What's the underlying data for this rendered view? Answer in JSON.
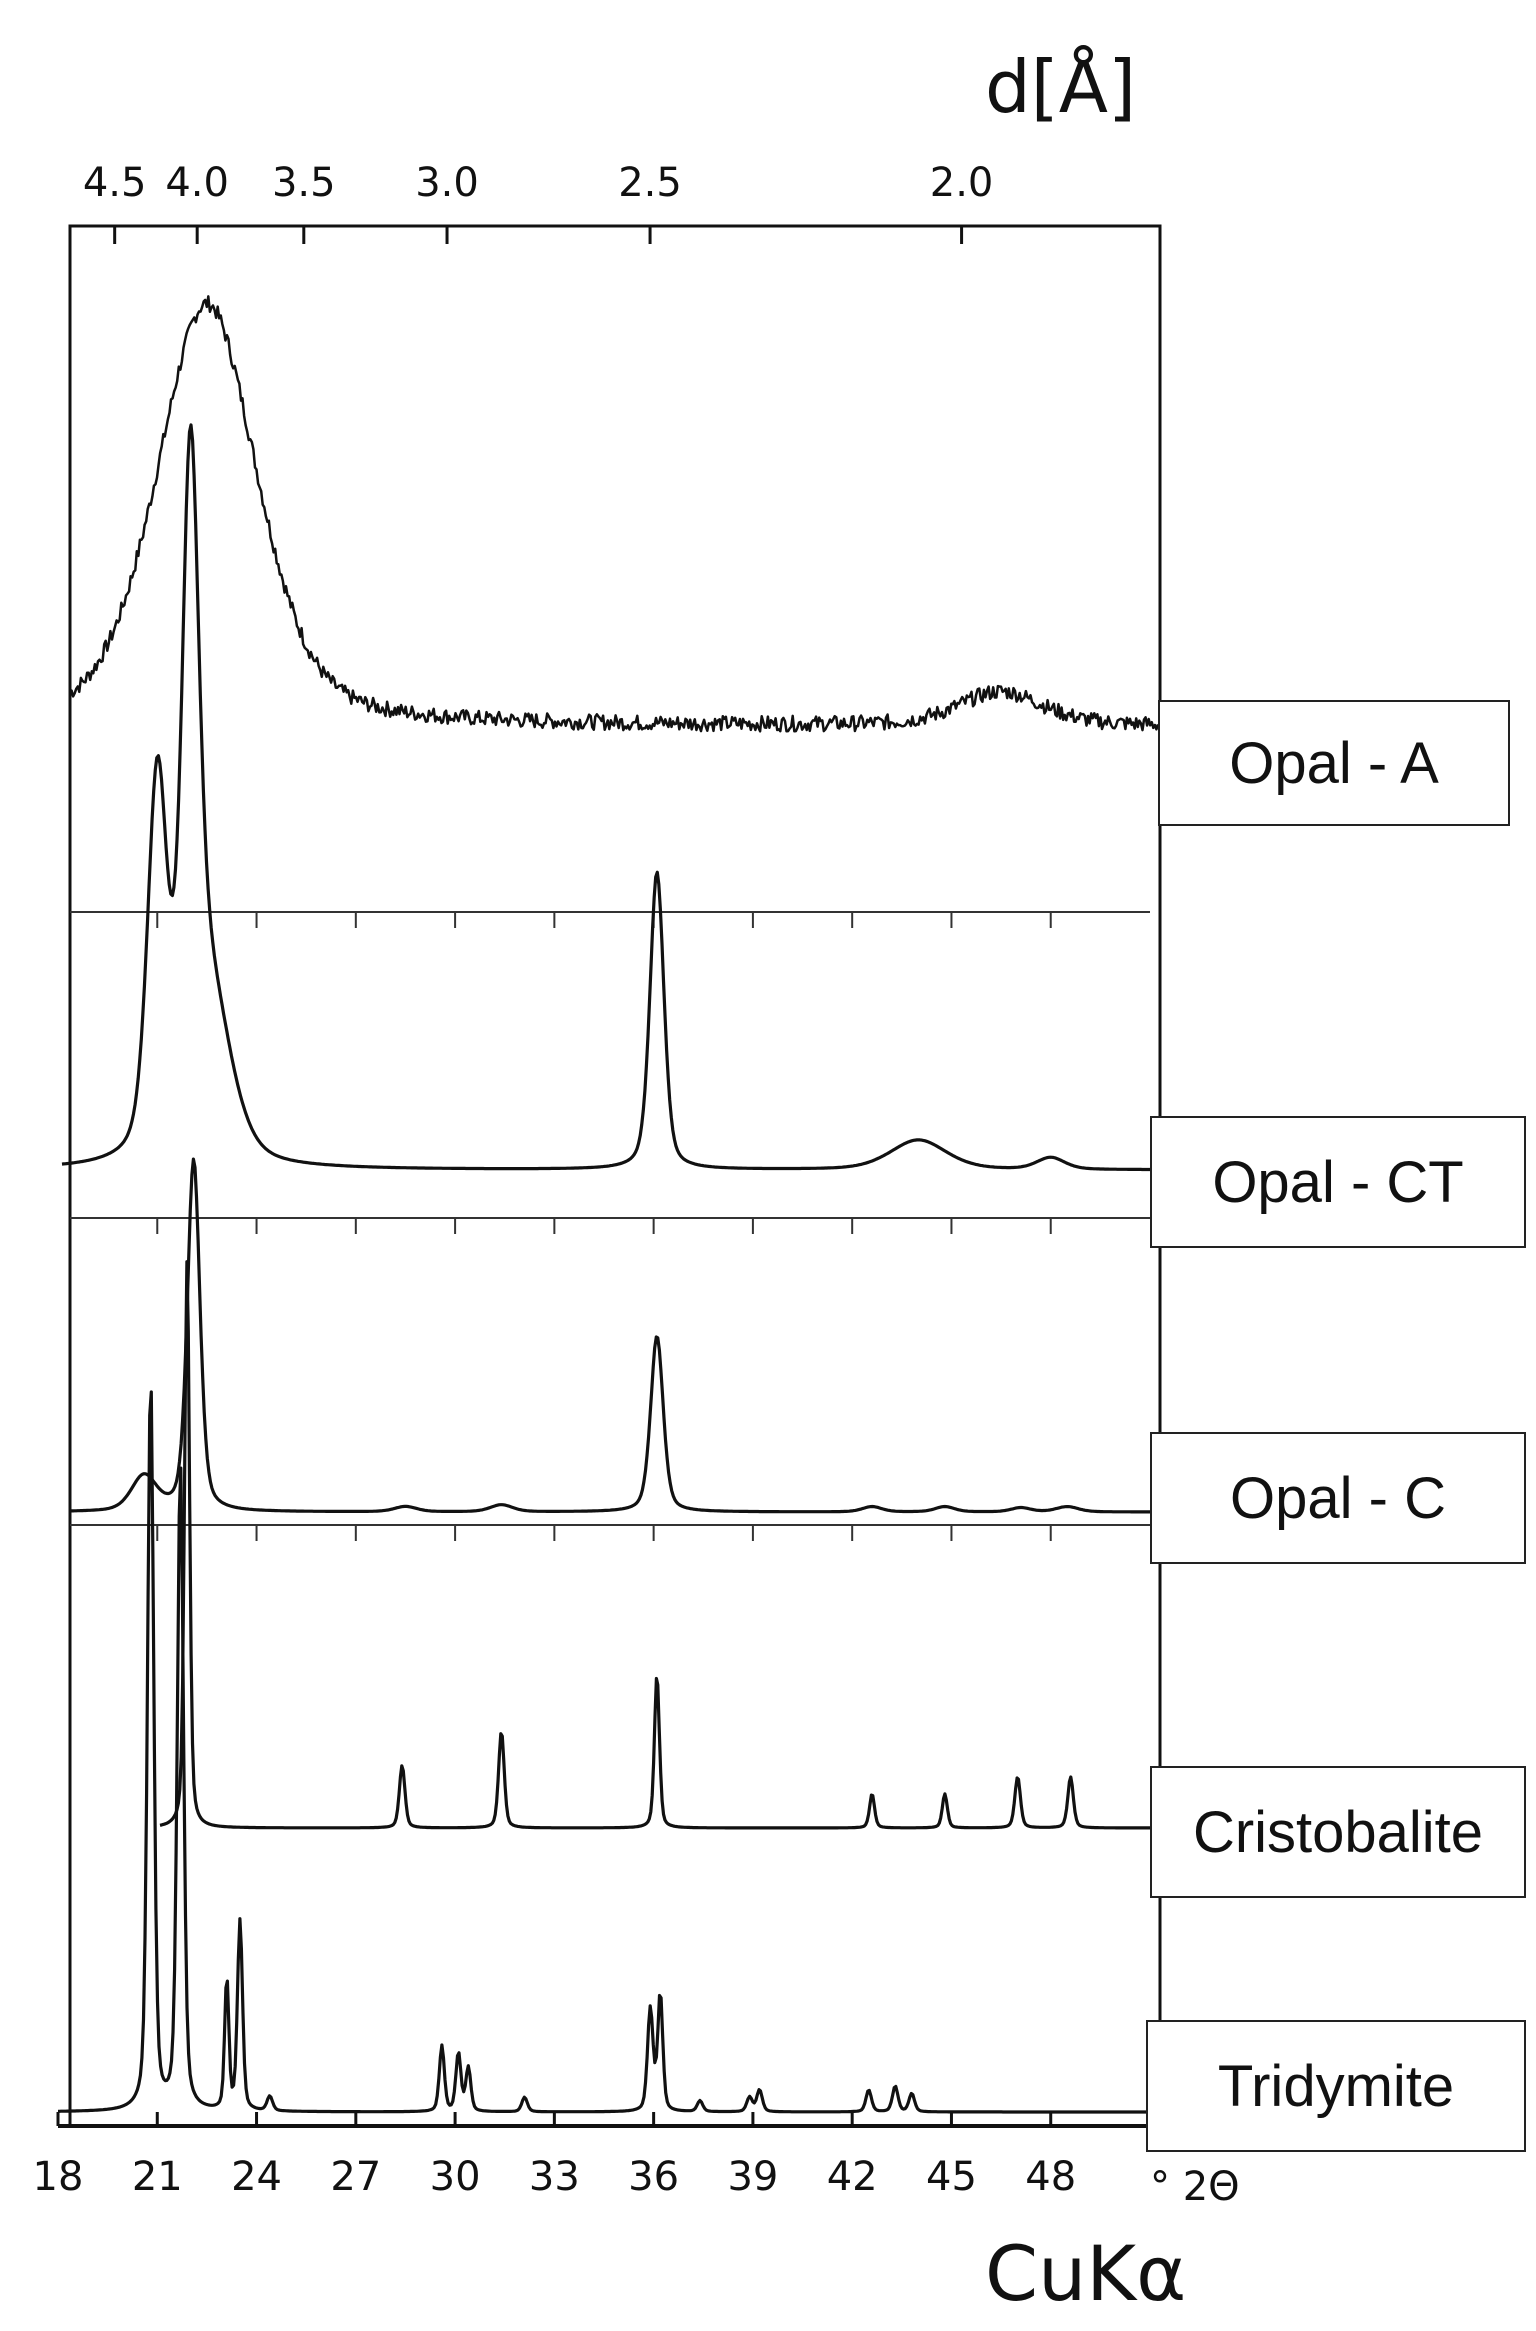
{
  "chart_data": {
    "type": "line",
    "x_unit_label": "° 2Θ",
    "xlabel": "CuKα",
    "x2label": "d[Å]",
    "xlim": [
      18,
      51
    ],
    "x_ticks": [
      "18",
      "21",
      "24",
      "27",
      "30",
      "33",
      "36",
      "39",
      "42",
      "45",
      "48"
    ],
    "d_ticks": [
      "4.5",
      "4.0",
      "3.5",
      "3.0",
      "2.5",
      "2.0"
    ],
    "series": [
      {
        "name": "Opal - A",
        "peaks": [
          {
            "x": 22.5,
            "height": 1.0,
            "width": 3.6
          },
          {
            "x": 46.5,
            "height": 0.08,
            "width": 3.0
          }
        ],
        "noisy": true
      },
      {
        "name": "Opal - CT",
        "peaks": [
          {
            "x": 21.0,
            "height": 0.62,
            "width": 0.7
          },
          {
            "x": 22.0,
            "height": 1.0,
            "width": 0.6
          },
          {
            "x": 22.5,
            "height": 0.3,
            "width": 1.6
          },
          {
            "x": 36.1,
            "height": 0.5,
            "width": 0.5
          },
          {
            "x": 44.0,
            "height": 0.05,
            "width": 2.0
          },
          {
            "x": 48.0,
            "height": 0.02,
            "width": 1.0
          }
        ],
        "noisy": false
      },
      {
        "name": "Opal - C",
        "peaks": [
          {
            "x": 20.6,
            "height": 0.1,
            "width": 0.9
          },
          {
            "x": 22.1,
            "height": 1.0,
            "width": 0.45
          },
          {
            "x": 28.5,
            "height": 0.015,
            "width": 0.8
          },
          {
            "x": 31.4,
            "height": 0.02,
            "width": 0.8
          },
          {
            "x": 36.1,
            "height": 0.5,
            "width": 0.45
          },
          {
            "x": 42.6,
            "height": 0.015,
            "width": 0.7
          },
          {
            "x": 44.8,
            "height": 0.015,
            "width": 0.7
          },
          {
            "x": 47.1,
            "height": 0.012,
            "width": 0.7
          },
          {
            "x": 48.5,
            "height": 0.015,
            "width": 0.8
          }
        ],
        "noisy": false
      },
      {
        "name": "Cristobalite",
        "peaks": [
          {
            "x": 21.9,
            "height": 1.0,
            "width": 0.18
          },
          {
            "x": 28.4,
            "height": 0.11,
            "width": 0.2
          },
          {
            "x": 31.4,
            "height": 0.17,
            "width": 0.2
          },
          {
            "x": 36.1,
            "height": 0.27,
            "width": 0.18
          },
          {
            "x": 42.6,
            "height": 0.06,
            "width": 0.18
          },
          {
            "x": 44.8,
            "height": 0.06,
            "width": 0.18
          },
          {
            "x": 47.0,
            "height": 0.09,
            "width": 0.2
          },
          {
            "x": 48.6,
            "height": 0.09,
            "width": 0.2
          }
        ],
        "noisy": false
      },
      {
        "name": "Tridymite",
        "peaks": [
          {
            "x": 20.8,
            "height": 1.0,
            "width": 0.22
          },
          {
            "x": 21.7,
            "height": 0.88,
            "width": 0.22
          },
          {
            "x": 23.1,
            "height": 0.18,
            "width": 0.15
          },
          {
            "x": 23.5,
            "height": 0.26,
            "width": 0.18
          },
          {
            "x": 24.4,
            "height": 0.02,
            "width": 0.2
          },
          {
            "x": 29.6,
            "height": 0.09,
            "width": 0.18
          },
          {
            "x": 30.1,
            "height": 0.08,
            "width": 0.18
          },
          {
            "x": 30.4,
            "height": 0.06,
            "width": 0.18
          },
          {
            "x": 32.1,
            "height": 0.02,
            "width": 0.2
          },
          {
            "x": 35.9,
            "height": 0.14,
            "width": 0.2
          },
          {
            "x": 36.2,
            "height": 0.16,
            "width": 0.18
          },
          {
            "x": 37.4,
            "height": 0.015,
            "width": 0.2
          },
          {
            "x": 38.9,
            "height": 0.02,
            "width": 0.2
          },
          {
            "x": 39.2,
            "height": 0.03,
            "width": 0.2
          },
          {
            "x": 42.5,
            "height": 0.03,
            "width": 0.2
          },
          {
            "x": 43.3,
            "height": 0.035,
            "width": 0.2
          },
          {
            "x": 43.8,
            "height": 0.025,
            "width": 0.2
          }
        ],
        "noisy": false
      }
    ],
    "grid": false,
    "legend_placement": "right"
  }
}
